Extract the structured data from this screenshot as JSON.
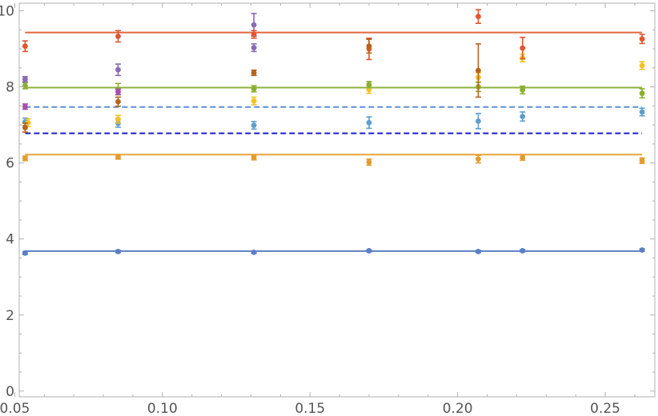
{
  "chart_data": {
    "type": "scatter",
    "title": "",
    "xlabel": "",
    "ylabel": "",
    "xlim": [
      0.0515,
      0.2668
    ],
    "ylim": [
      -0.15,
      10.2
    ],
    "x_ticks": [
      0.05,
      0.1,
      0.15,
      0.2,
      0.25
    ],
    "x_tick_labels": [
      "0.05",
      "0.10",
      "0.15",
      "0.20",
      "0.25"
    ],
    "y_ticks": [
      0,
      2,
      4,
      6,
      8,
      10
    ],
    "y_tick_labels": [
      "0",
      "2",
      "4",
      "6",
      "8",
      "10"
    ],
    "grid": false,
    "legend": "none",
    "reference_lines": [
      {
        "y": 9.43,
        "color": "#e1663e",
        "style": "solid"
      },
      {
        "y": 7.98,
        "color": "#8db33f",
        "style": "solid"
      },
      {
        "y": 7.47,
        "color": "#5d8fd0",
        "style": "dashed"
      },
      {
        "y": 6.78,
        "color": "#1a1ac6",
        "style": "dashed"
      },
      {
        "y": 6.22,
        "color": "#e5a63a",
        "style": "solid"
      },
      {
        "y": 3.68,
        "color": "#5a7fc4",
        "style": "solid"
      }
    ],
    "series": [
      {
        "color": "#5a7fc4",
        "points": [
          {
            "x": 0.0535,
            "y": 3.63,
            "err": 0.04
          },
          {
            "x": 0.085,
            "y": 3.67,
            "err": 0.03
          },
          {
            "x": 0.131,
            "y": 3.65,
            "err": 0.03
          },
          {
            "x": 0.17,
            "y": 3.69,
            "err": 0.03
          },
          {
            "x": 0.207,
            "y": 3.67,
            "err": 0.03
          },
          {
            "x": 0.222,
            "y": 3.69,
            "err": 0.03
          },
          {
            "x": 0.2625,
            "y": 3.71,
            "err": 0.03
          }
        ]
      },
      {
        "color": "#e59a2e",
        "points": [
          {
            "x": 0.0535,
            "y": 6.12,
            "err": 0.06
          },
          {
            "x": 0.085,
            "y": 6.16,
            "err": 0.06
          },
          {
            "x": 0.131,
            "y": 6.14,
            "err": 0.06
          },
          {
            "x": 0.17,
            "y": 6.02,
            "err": 0.08
          },
          {
            "x": 0.207,
            "y": 6.1,
            "err": 0.1
          },
          {
            "x": 0.222,
            "y": 6.14,
            "err": 0.07
          },
          {
            "x": 0.2625,
            "y": 6.06,
            "err": 0.07
          }
        ]
      },
      {
        "color": "#5e9ecf",
        "points": [
          {
            "x": 0.0535,
            "y": 7.08,
            "err": 0.1
          },
          {
            "x": 0.085,
            "y": 7.04,
            "err": 0.1
          },
          {
            "x": 0.131,
            "y": 6.99,
            "err": 0.1
          },
          {
            "x": 0.17,
            "y": 7.06,
            "err": 0.15
          },
          {
            "x": 0.207,
            "y": 7.1,
            "err": 0.2
          },
          {
            "x": 0.222,
            "y": 7.22,
            "err": 0.12
          },
          {
            "x": 0.2625,
            "y": 7.34,
            "err": 0.1
          }
        ]
      },
      {
        "color": "#f2c124",
        "points": [
          {
            "x": 0.0545,
            "y": 7.06,
            "err": 0.1
          },
          {
            "x": 0.085,
            "y": 7.15,
            "err": 0.1
          },
          {
            "x": 0.131,
            "y": 7.63,
            "err": 0.1
          },
          {
            "x": 0.17,
            "y": 7.93,
            "err": 0.1
          },
          {
            "x": 0.207,
            "y": 8.25,
            "err": 0.12
          },
          {
            "x": 0.222,
            "y": 8.76,
            "err": 0.1
          },
          {
            "x": 0.2625,
            "y": 8.56,
            "err": 0.1
          }
        ]
      },
      {
        "color": "#8aaf2e",
        "points": [
          {
            "x": 0.0535,
            "y": 8.03,
            "err": 0.08
          },
          {
            "x": 0.085,
            "y": 7.94,
            "err": 0.15
          },
          {
            "x": 0.131,
            "y": 7.95,
            "err": 0.08
          },
          {
            "x": 0.17,
            "y": 8.06,
            "err": 0.08
          },
          {
            "x": 0.207,
            "y": 8.0,
            "err": 0.12
          },
          {
            "x": 0.222,
            "y": 7.92,
            "err": 0.1
          },
          {
            "x": 0.2625,
            "y": 7.83,
            "err": 0.12
          }
        ]
      },
      {
        "color": "#8a6bb5",
        "points": [
          {
            "x": 0.0535,
            "y": 8.2,
            "err": 0.07
          },
          {
            "x": 0.085,
            "y": 8.45,
            "err": 0.15
          },
          {
            "x": 0.131,
            "y": 9.63,
            "err": 0.3
          },
          {
            "x": 0.131,
            "y": 9.03,
            "err": 0.1
          }
        ]
      },
      {
        "color": "#a94fb1",
        "points": [
          {
            "x": 0.0535,
            "y": 7.48,
            "err": 0.07
          },
          {
            "x": 0.085,
            "y": 7.87,
            "err": 0.07
          }
        ]
      },
      {
        "color": "#e0562f",
        "points": [
          {
            "x": 0.0535,
            "y": 9.07,
            "err": 0.14
          },
          {
            "x": 0.085,
            "y": 9.33,
            "err": 0.15
          },
          {
            "x": 0.131,
            "y": 9.38,
            "err": 0.1
          },
          {
            "x": 0.17,
            "y": 9.0,
            "err": 0.28
          },
          {
            "x": 0.207,
            "y": 9.85,
            "err": 0.18
          },
          {
            "x": 0.222,
            "y": 9.02,
            "err": 0.28
          },
          {
            "x": 0.2625,
            "y": 9.26,
            "err": 0.12
          }
        ]
      },
      {
        "color": "#b5651d",
        "points": [
          {
            "x": 0.0535,
            "y": 6.93,
            "err": 0.12
          },
          {
            "x": 0.085,
            "y": 7.61,
            "err": 0.12
          },
          {
            "x": 0.131,
            "y": 8.37,
            "err": 0.07
          },
          {
            "x": 0.17,
            "y": 9.07,
            "err": 0.18
          },
          {
            "x": 0.207,
            "y": 8.43,
            "err": 0.7
          }
        ]
      }
    ]
  }
}
